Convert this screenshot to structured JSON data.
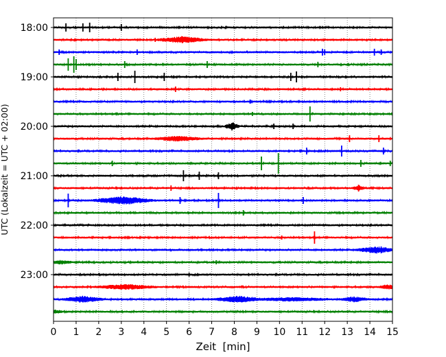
{
  "chart_data": {
    "type": "line",
    "title": "",
    "xlabel": "Zeit  [min]",
    "ylabel": "UTC (Lokalzeit = UTC + 02:00)",
    "xlim": [
      0,
      15
    ],
    "x_ticks": [
      "0",
      "1",
      "2",
      "3",
      "4",
      "5",
      "6",
      "7",
      "8",
      "9",
      "10",
      "11",
      "12",
      "13",
      "14",
      "15"
    ],
    "y_ticks": [
      "18:00",
      "19:00",
      "20:00",
      "21:00",
      "22:00",
      "23:00"
    ],
    "grid_x": true,
    "trace_colors": [
      "#000000",
      "#ff0000",
      "#0000ff",
      "#008000"
    ],
    "traces": [
      {
        "start": "18:00",
        "events": [
          [
            0.55,
            6
          ],
          [
            1.3,
            6
          ],
          [
            1.6,
            7
          ],
          [
            3.0,
            5
          ]
        ],
        "bursts": []
      },
      {
        "start": "18:15",
        "events": [
          [
            5.7,
            5
          ],
          [
            4.5,
            3
          ]
        ],
        "bursts": [
          [
            5.7,
            1.2,
            4
          ]
        ]
      },
      {
        "start": "18:30",
        "events": [
          [
            0.25,
            4
          ],
          [
            3.7,
            4
          ],
          [
            11.9,
            5
          ],
          [
            12.0,
            4
          ],
          [
            14.2,
            5
          ],
          [
            14.5,
            4
          ]
        ],
        "bursts": []
      },
      {
        "start": "18:45",
        "events": [
          [
            0.65,
            9
          ],
          [
            0.9,
            12
          ],
          [
            1.0,
            8
          ],
          [
            3.15,
            5
          ],
          [
            6.8,
            5
          ],
          [
            11.7,
            4
          ]
        ],
        "bursts": []
      },
      {
        "start": "19:00",
        "events": [
          [
            2.85,
            6
          ],
          [
            3.6,
            9
          ],
          [
            4.9,
            6
          ],
          [
            10.5,
            6
          ],
          [
            10.75,
            8
          ]
        ],
        "bursts": []
      },
      {
        "start": "19:15",
        "events": [
          [
            5.4,
            4
          ],
          [
            12.7,
            3
          ]
        ],
        "bursts": []
      },
      {
        "start": "19:30",
        "events": [
          [
            8.7,
            3
          ]
        ],
        "bursts": []
      },
      {
        "start": "19:45",
        "events": [
          [
            11.35,
            11
          ],
          [
            8.8,
            3
          ]
        ],
        "bursts": []
      },
      {
        "start": "20:00",
        "events": [
          [
            7.9,
            5
          ],
          [
            9.75,
            4
          ],
          [
            10.6,
            4
          ]
        ],
        "bursts": [
          [
            7.9,
            0.35,
            5
          ]
        ]
      },
      {
        "start": "20:15",
        "events": [
          [
            13.1,
            5
          ],
          [
            14.4,
            5
          ]
        ],
        "bursts": [
          [
            5.5,
            1.2,
            3
          ]
        ]
      },
      {
        "start": "20:30",
        "events": [
          [
            11.2,
            5
          ],
          [
            12.75,
            8
          ],
          [
            14.6,
            5
          ]
        ],
        "bursts": []
      },
      {
        "start": "20:45",
        "events": [
          [
            9.2,
            10
          ],
          [
            9.95,
            15
          ],
          [
            2.6,
            4
          ],
          [
            13.6,
            5
          ],
          [
            14.9,
            4
          ]
        ],
        "bursts": []
      },
      {
        "start": "21:00",
        "events": [
          [
            5.75,
            8
          ],
          [
            6.45,
            6
          ],
          [
            7.3,
            5
          ]
        ],
        "bursts": []
      },
      {
        "start": "21:15",
        "events": [
          [
            5.2,
            4
          ],
          [
            13.5,
            5
          ]
        ],
        "bursts": [
          [
            13.5,
            0.3,
            3
          ]
        ]
      },
      {
        "start": "21:30",
        "events": [
          [
            0.65,
            10
          ],
          [
            5.6,
            5
          ],
          [
            7.3,
            11
          ],
          [
            11.05,
            5
          ]
        ],
        "bursts": [
          [
            3.1,
            1.5,
            5
          ]
        ]
      },
      {
        "start": "21:45",
        "events": [
          [
            8.4,
            4
          ]
        ],
        "bursts": []
      },
      {
        "start": "22:00",
        "events": [],
        "bursts": []
      },
      {
        "start": "22:15",
        "events": [
          [
            11.55,
            9
          ],
          [
            10.1,
            3
          ]
        ],
        "bursts": []
      },
      {
        "start": "22:30",
        "events": [
          [
            14.5,
            5
          ]
        ],
        "bursts": [
          [
            14.3,
            1.0,
            4
          ]
        ]
      },
      {
        "start": "22:45",
        "events": [
          [
            7.2,
            3
          ]
        ],
        "bursts": [
          [
            0.3,
            0.6,
            2
          ]
        ]
      },
      {
        "start": "23:00",
        "events": [
          [
            6.0,
            3
          ]
        ],
        "bursts": []
      },
      {
        "start": "23:15",
        "events": [
          [
            3.2,
            4
          ]
        ],
        "bursts": [
          [
            3.2,
            1.5,
            3
          ],
          [
            14.8,
            0.4,
            3
          ]
        ]
      },
      {
        "start": "23:30",
        "events": [
          [
            8.2,
            4
          ],
          [
            13.3,
            4
          ]
        ],
        "bursts": [
          [
            1.3,
            1.0,
            4
          ],
          [
            8.2,
            1.2,
            4
          ],
          [
            10.5,
            2.0,
            2
          ],
          [
            13.3,
            0.7,
            3
          ]
        ]
      },
      {
        "start": "23:45",
        "events": [],
        "bursts": [
          [
            0.1,
            0.3,
            2
          ]
        ]
      }
    ]
  }
}
